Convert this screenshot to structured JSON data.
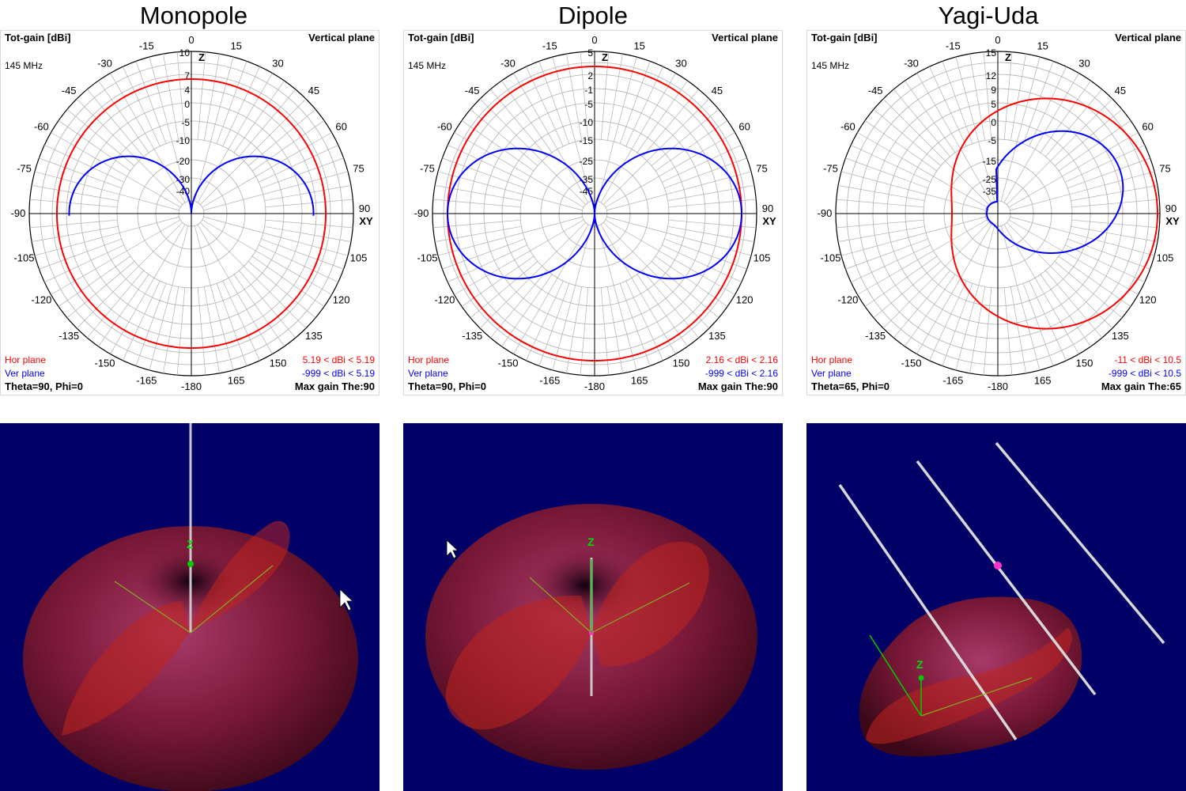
{
  "panels": [
    {
      "title": "Monopole",
      "top_left": "Tot-gain [dBi]",
      "freq": "145 MHz",
      "top_right": "Vertical plane",
      "hor_label": "Hor plane",
      "ver_label": "Ver plane",
      "bottom_left": "Theta=90, Phi=0",
      "hor_range": "5.19 < dBi < 5.19",
      "ver_range": "-999 < dBi < 5.19",
      "bottom_right": "Max gain The:90",
      "z_label": "Z",
      "xy_label": "XY",
      "xy_tick": "90",
      "ring_labels": [
        "10",
        "7",
        "4",
        "0",
        "-5",
        "-10",
        "-20",
        "-30",
        "-40"
      ]
    },
    {
      "title": "Dipole",
      "top_left": "Tot-gain [dBi]",
      "freq": "145 MHz",
      "top_right": "Vertical plane",
      "hor_label": "Hor plane",
      "ver_label": "Ver plane",
      "bottom_left": "Theta=90, Phi=0",
      "hor_range": "2.16 < dBi < 2.16",
      "ver_range": "-999 < dBi < 2.16",
      "bottom_right": "Max gain The:90",
      "z_label": "Z",
      "xy_label": "XY",
      "xy_tick": "90",
      "ring_labels": [
        "5",
        "2",
        "-1",
        "-5",
        "-10",
        "-15",
        "-25",
        "-35",
        "-45"
      ]
    },
    {
      "title": "Yagi-Uda",
      "top_left": "Tot-gain [dBi]",
      "freq": "145 MHz",
      "top_right": "Vertical plane",
      "hor_label": "Hor plane",
      "ver_label": "Ver plane",
      "bottom_left": "Theta=65, Phi=0",
      "hor_range": "-11 < dBi < 10.5",
      "ver_range": "-999 < dBi < 10.5",
      "bottom_right": "Max gain The:65",
      "z_label": "Z",
      "xy_label": "XY",
      "xy_tick": "90",
      "ring_labels": [
        "15",
        "12",
        "9",
        "5",
        "0",
        "-5",
        "-15",
        "-25",
        "-35"
      ]
    }
  ],
  "angle_labels": [
    "0",
    "15",
    "30",
    "45",
    "60",
    "75",
    "105",
    "120",
    "135",
    "150",
    "165",
    "-180",
    "-165",
    "-150",
    "-135",
    "-120",
    "-105",
    "-90",
    "-75",
    "-60",
    "-45",
    "-30",
    "-15"
  ],
  "angle_values": [
    0,
    15,
    30,
    45,
    60,
    75,
    105,
    120,
    135,
    150,
    165,
    180,
    195,
    210,
    225,
    240,
    255,
    270,
    285,
    300,
    315,
    330,
    345
  ],
  "views3d": [
    {
      "z_axis": "Z"
    },
    {
      "z_axis": "Z"
    },
    {
      "z_axis": "Z"
    }
  ],
  "colors": {
    "hor_plane": "#ff0000",
    "ver_plane": "#0000ff",
    "grid": "#b0b0b0",
    "view_bg": "#000066",
    "lobe": "#8a1a40",
    "plane_cut": "#c0241e",
    "axis_green": "#00cc00",
    "element": "#d8d8d8"
  },
  "chart_data": [
    {
      "type": "polar-line",
      "title": "Monopole",
      "unit": "dBi",
      "series": [
        {
          "name": "Hor plane",
          "pattern": "omni",
          "gain_dbi": 5.19
        },
        {
          "name": "Ver plane",
          "pattern": "monopole",
          "max_gain_dbi": 5.19,
          "max_theta_deg": 90
        }
      ]
    },
    {
      "type": "polar-line",
      "title": "Dipole",
      "unit": "dBi",
      "series": [
        {
          "name": "Hor plane",
          "pattern": "omni",
          "gain_dbi": 2.16
        },
        {
          "name": "Ver plane",
          "pattern": "dipole",
          "max_gain_dbi": 2.16,
          "max_theta_deg": 90
        }
      ]
    },
    {
      "type": "polar-line",
      "title": "Yagi-Uda",
      "unit": "dBi",
      "series": [
        {
          "name": "Hor plane",
          "pattern": "directional",
          "min_gain_dbi": -11,
          "max_gain_dbi": 10.5
        },
        {
          "name": "Ver plane",
          "pattern": "directional-tilted",
          "max_gain_dbi": 10.5,
          "max_theta_deg": 65
        }
      ]
    }
  ]
}
